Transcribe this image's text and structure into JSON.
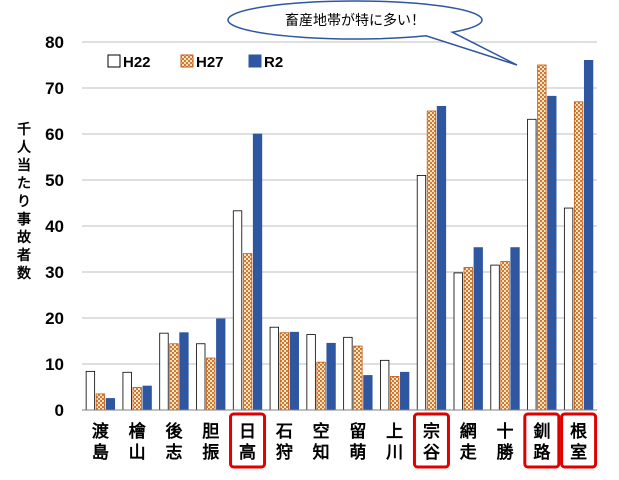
{
  "chart_data": {
    "type": "bar",
    "ylabel": "千人当たり事故者数",
    "ylim": [
      0,
      80
    ],
    "yticks": [
      0,
      10,
      20,
      30,
      40,
      50,
      60,
      70,
      80
    ],
    "grid": true,
    "legend_position": "top-left",
    "categories": [
      "渡島",
      "檜山",
      "後志",
      "胆振",
      "日高",
      "石狩",
      "空知",
      "留萌",
      "上川",
      "宗谷",
      "網走",
      "十勝",
      "釧路",
      "根室"
    ],
    "highlighted": [
      "日高",
      "宗谷",
      "釧路",
      "根室"
    ],
    "series": [
      {
        "name": "H22",
        "color": "#ffffff",
        "values": [
          8.4,
          8.2,
          16.7,
          14.4,
          43.3,
          18.0,
          16.4,
          15.8,
          10.8,
          51.0,
          29.8,
          31.5,
          63.2,
          43.9
        ]
      },
      {
        "name": "H27",
        "color": "#e9a867",
        "values": [
          3.5,
          4.9,
          14.4,
          11.3,
          34.0,
          16.8,
          10.4,
          13.9,
          7.3,
          65.0,
          31.0,
          32.3,
          75.0,
          67.0
        ]
      },
      {
        "name": "R2",
        "color": "#2f56a0",
        "values": [
          2.5,
          5.2,
          16.8,
          19.8,
          60.0,
          16.9,
          14.5,
          7.5,
          8.2,
          66.0,
          35.3,
          35.3,
          68.2,
          76.0
        ]
      }
    ],
    "annotation": "畜産地帯が特に多い！"
  }
}
